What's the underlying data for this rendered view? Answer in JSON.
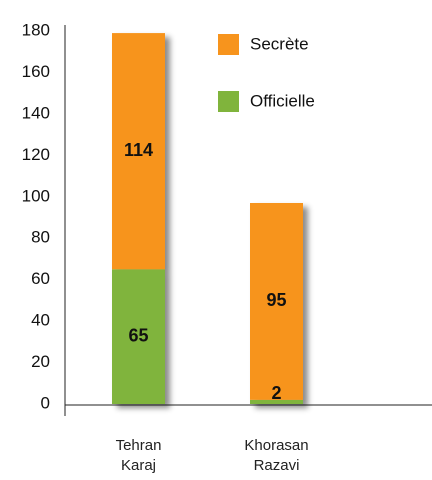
{
  "chart_data": {
    "type": "stacked_bar",
    "categories": [
      "Tehran Karaj",
      "Khorasan Razavi"
    ],
    "series": [
      {
        "name": "Officielle",
        "color": "#80b43c",
        "values": [
          65,
          2
        ]
      },
      {
        "name": "Secrète",
        "color": "#f7941d",
        "values": [
          114,
          95
        ]
      }
    ],
    "ylim": [
      0,
      180
    ],
    "yticks": [
      0,
      20,
      40,
      60,
      80,
      100,
      120,
      140,
      160,
      180
    ],
    "grid": false,
    "legend": "top-right"
  }
}
